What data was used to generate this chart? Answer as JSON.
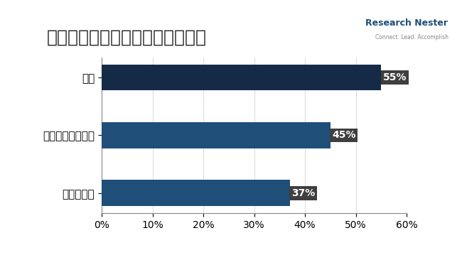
{
  "title": "微結晶セルロース市場一地域貢献",
  "categories": [
    "ヨーロッパ",
    "アジア太平洋地域",
    "北米"
  ],
  "values": [
    37,
    45,
    55
  ],
  "labels": [
    "37%",
    "45%",
    "55%"
  ],
  "bar_colors": [
    "#1f4e79",
    "#1f4e79",
    "#152a47"
  ],
  "xlim": [
    0,
    60
  ],
  "xticks": [
    0,
    10,
    20,
    30,
    40,
    50,
    60
  ],
  "xtick_labels": [
    "0%",
    "10%",
    "20%",
    "30%",
    "40%",
    "50%",
    "60%"
  ],
  "background_color": "#ffffff",
  "title_fontsize": 18,
  "tick_fontsize": 10,
  "label_fontsize": 10,
  "category_fontsize": 11,
  "bar_height": 0.45,
  "label_bg_color": "#3f3f3f",
  "label_text_color": "#ffffff"
}
